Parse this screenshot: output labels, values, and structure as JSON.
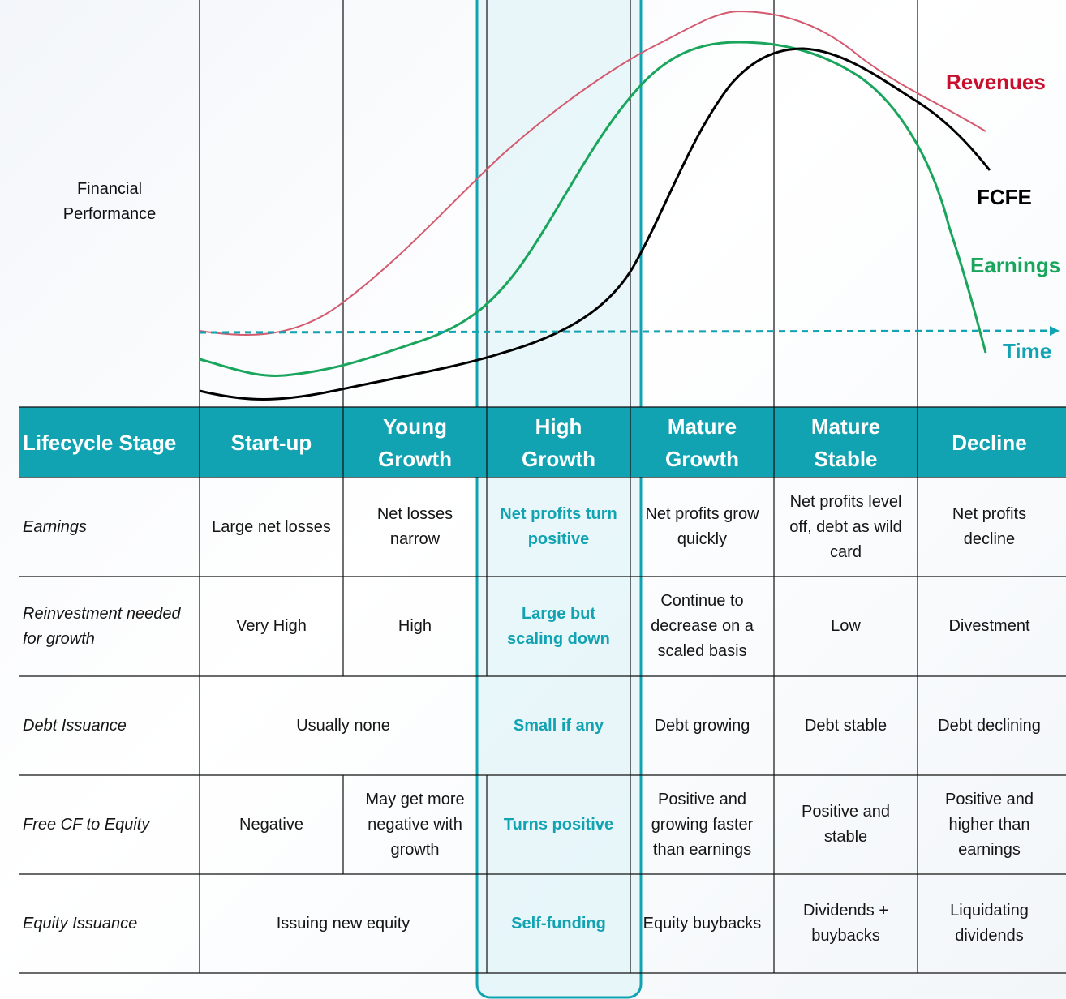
{
  "colors": {
    "header_bg": "#12a3b2",
    "revenues": "#c8102e",
    "revenues_line": "#d45a6e",
    "fcfe": "#000000",
    "earnings": "#19a65c",
    "time": "#12a3b2",
    "highlight_fill": "#dff4f8"
  },
  "chart": {
    "y_label": "Financial\nPerformance",
    "series_labels": {
      "revenues": "Revenues",
      "fcfe": "FCFE",
      "earnings": "Earnings",
      "time": "Time"
    }
  },
  "table": {
    "header": {
      "label": "Lifecycle Stage",
      "stages": [
        "Start-up",
        "Young\nGrowth",
        "High\nGrowth",
        "Mature\nGrowth",
        "Mature\nStable",
        "Decline"
      ]
    },
    "rows": {
      "earnings": {
        "label": "Earnings",
        "startup": "Large net losses",
        "young": "Net losses\nnarrow",
        "high": "Net profits turn\npositive",
        "mature_growth": "Net profits grow\nquickly",
        "mature_stable": "Net profits level\noff, debt as wild\ncard",
        "decline": "Net profits\ndecline"
      },
      "reinvestment": {
        "label": "Reinvestment needed\nfor growth",
        "startup": "Very High",
        "young": "High",
        "high": "Large but\nscaling down",
        "mature_growth": "Continue to\ndecrease on a\nscaled basis",
        "mature_stable": "Low",
        "decline": "Divestment"
      },
      "debt": {
        "label": "Debt Issuance",
        "startup_young": "Usually none",
        "high": "Small if any",
        "mature_growth": "Debt growing",
        "mature_stable": "Debt stable",
        "decline": "Debt declining"
      },
      "fcfe": {
        "label": "Free CF to Equity",
        "startup": "Negative",
        "young": "May get more\nnegative with\ngrowth",
        "high": "Turns positive",
        "mature_growth": "Positive and\ngrowing faster\nthan earnings",
        "mature_stable": "Positive and\nstable",
        "decline": "Positive and\nhigher than\nearnings"
      },
      "equity": {
        "label": "Equity Issuance",
        "startup_young": "Issuing new equity",
        "high": "Self-funding",
        "mature_growth": "Equity buybacks",
        "mature_stable": "Dividends +\nbuybacks",
        "decline": "Liquidating\ndividends"
      }
    }
  }
}
